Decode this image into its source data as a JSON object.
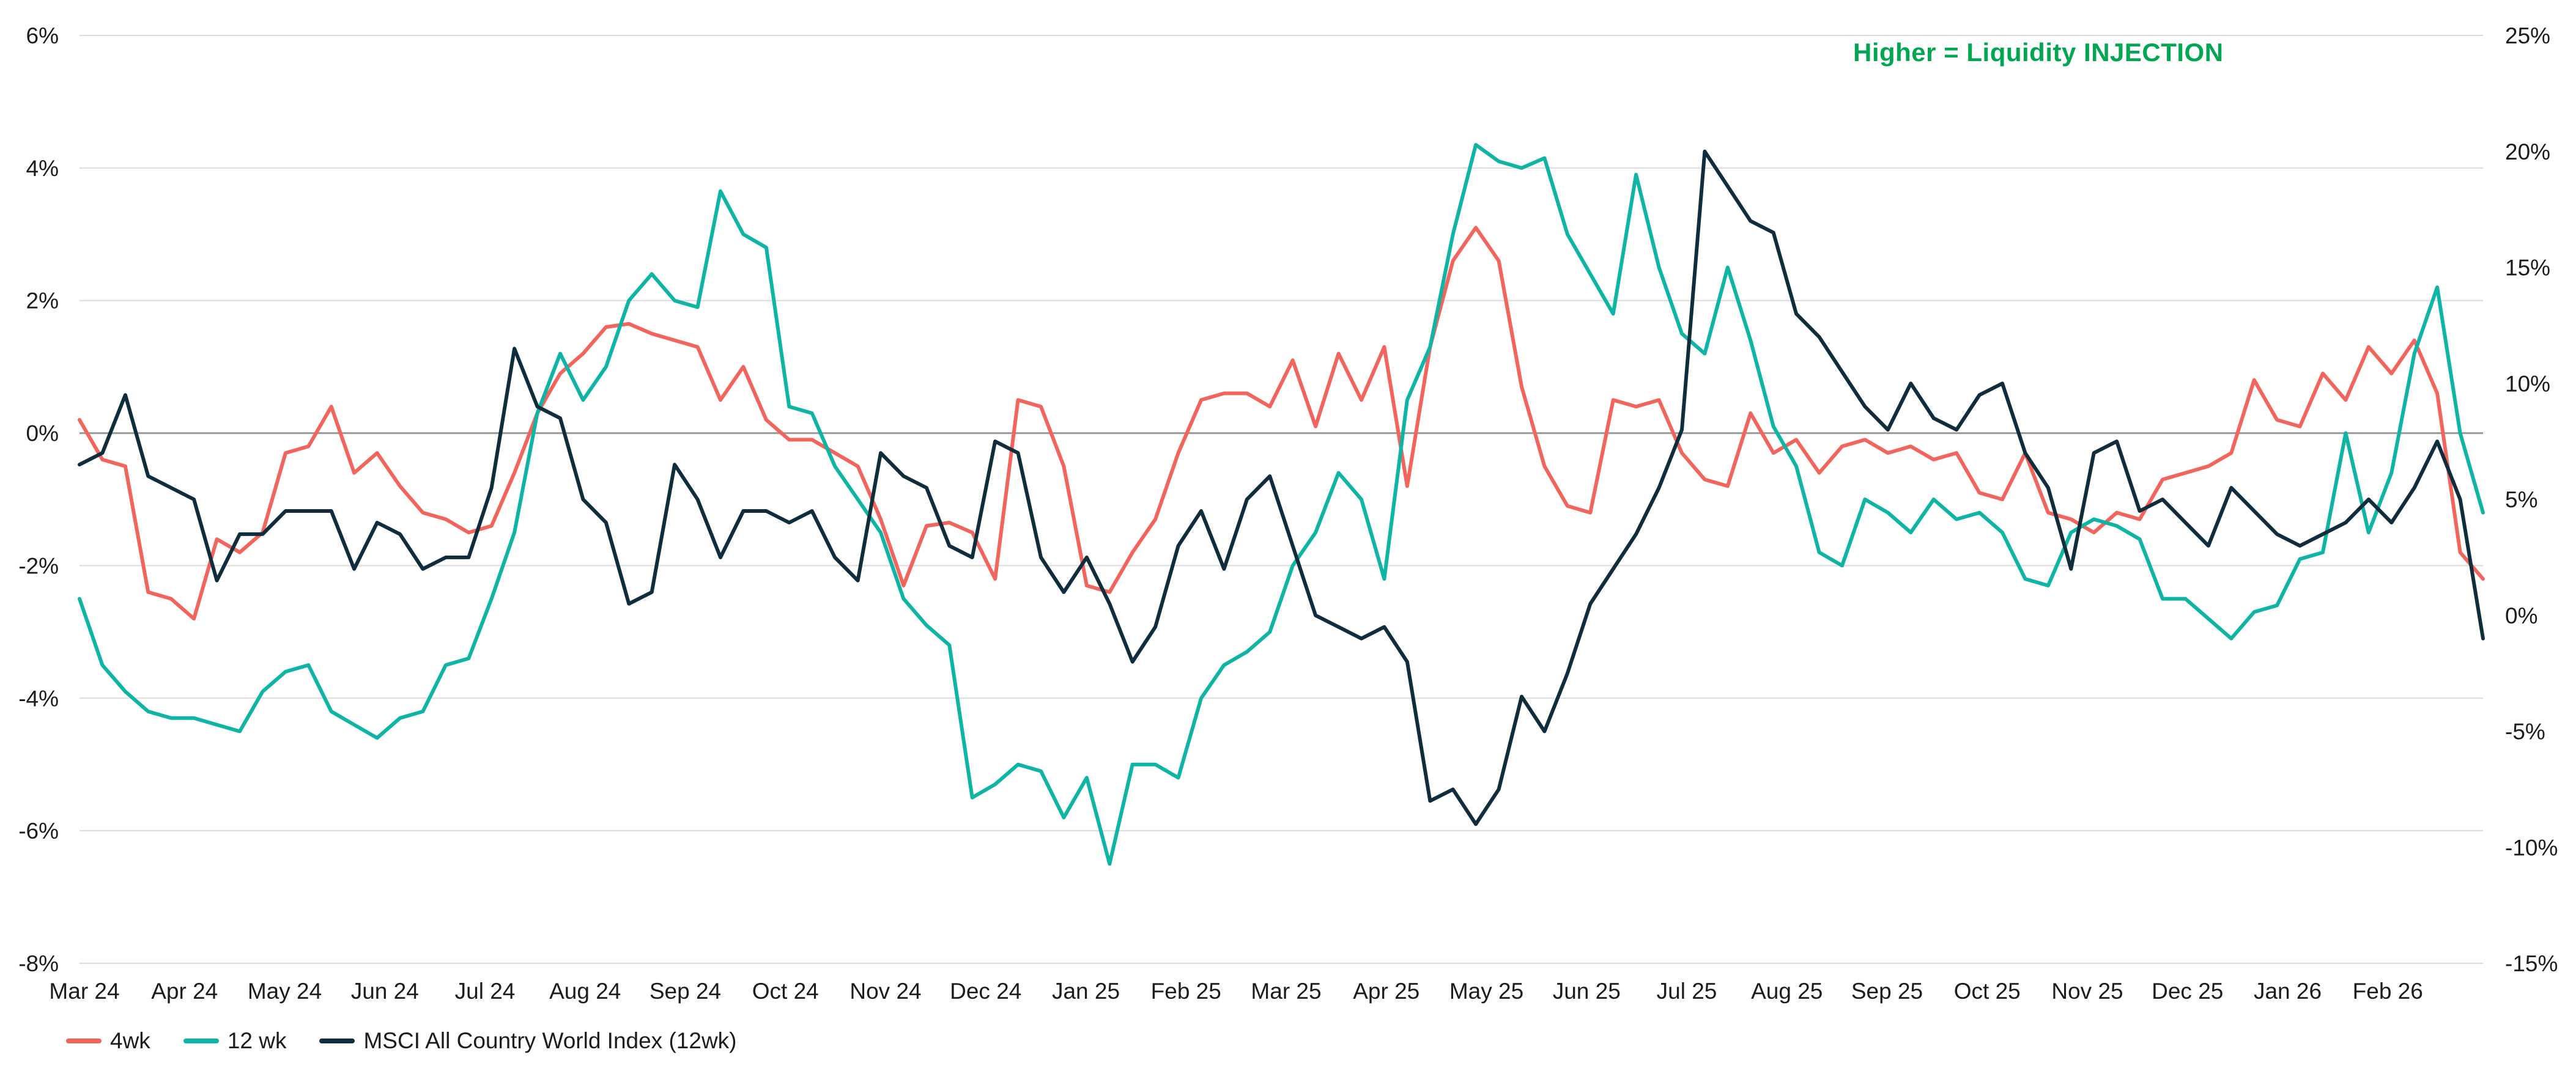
{
  "chart_data": {
    "type": "line",
    "title": "",
    "annotation": "Higher = Liquidity INJECTION",
    "annotation_color": "#00A651",
    "colors": {
      "grid_line": "#DBDBDB",
      "zero_line": "#9A9A9A",
      "text": "#1C1C1C",
      "background": "#FFFFFF"
    },
    "x_axis": {
      "labels": [
        "Mar 24",
        "Apr 24",
        "May 24",
        "Jun 24",
        "Jul 24",
        "Aug 24",
        "Sep 24",
        "Oct 24",
        "Nov 24",
        "Dec 24",
        "Jan 25",
        "Feb 25",
        "Mar 25",
        "Apr 25",
        "May 25",
        "Jun 25",
        "Jul 25",
        "Aug 25",
        "Sep 25",
        "Oct 25",
        "Nov 25",
        "Dec 25",
        "Jan 26",
        "Feb 26"
      ]
    },
    "left_axis": {
      "ticks": [
        "6%",
        "4%",
        "2%",
        "0%",
        "-2%",
        "-4%",
        "-6%",
        "-8%"
      ],
      "tick_values": [
        6,
        4,
        2,
        0,
        -2,
        -4,
        -6,
        -8
      ],
      "max": 6,
      "min": -8
    },
    "right_axis": {
      "ticks": [
        "25%",
        "20%",
        "15%",
        "10%",
        "5%",
        "0%",
        "-5%",
        "-10%",
        "-15%"
      ],
      "tick_values": [
        25,
        20,
        15,
        10,
        5,
        0,
        -5,
        -10,
        -15
      ],
      "max": 25,
      "min": -15
    },
    "series": [
      {
        "name": "4wk",
        "color": "#F2655C",
        "axis": "left",
        "values": [
          0.2,
          -0.4,
          -0.5,
          -2.4,
          -2.5,
          -2.8,
          -1.6,
          -1.8,
          -1.5,
          -0.3,
          -0.2,
          0.4,
          -0.6,
          -0.3,
          -0.8,
          -1.2,
          -1.3,
          -1.5,
          -1.4,
          -0.6,
          0.3,
          0.9,
          1.2,
          1.6,
          1.65,
          1.5,
          1.4,
          1.3,
          0.5,
          1.0,
          0.2,
          -0.1,
          -0.1,
          -0.3,
          -0.5,
          -1.3,
          -2.3,
          -1.4,
          -1.35,
          -1.5,
          -2.2,
          0.5,
          0.4,
          -0.5,
          -2.3,
          -2.4,
          -1.8,
          -1.3,
          -0.3,
          0.5,
          0.6,
          0.6,
          0.4,
          1.1,
          0.1,
          1.2,
          0.5,
          1.3,
          -0.8,
          1.3,
          2.6,
          3.1,
          2.6,
          0.7,
          -0.5,
          -1.1,
          -1.2,
          0.5,
          0.4,
          0.5,
          -0.3,
          -0.7,
          -0.8,
          0.3,
          -0.3,
          -0.1,
          -0.6,
          -0.2,
          -0.1,
          -0.3,
          -0.2,
          -0.4,
          -0.3,
          -0.9,
          -1.0,
          -0.3,
          -1.2,
          -1.3,
          -1.5,
          -1.2,
          -1.3,
          -0.7,
          -0.6,
          -0.5,
          -0.3,
          0.8,
          0.2,
          0.1,
          0.9,
          0.5,
          1.3,
          0.9,
          1.4,
          0.6,
          -1.8,
          -2.2
        ]
      },
      {
        "name": "12 wk",
        "color": "#0EB4A4",
        "axis": "left",
        "values": [
          -2.5,
          -3.5,
          -3.9,
          -4.2,
          -4.3,
          -4.3,
          -4.4,
          -4.5,
          -3.9,
          -3.6,
          -3.5,
          -4.2,
          -4.4,
          -4.6,
          -4.3,
          -4.2,
          -3.5,
          -3.4,
          -2.5,
          -1.5,
          0.3,
          1.2,
          0.5,
          1.0,
          2.0,
          2.4,
          2.0,
          1.9,
          3.65,
          3.0,
          2.8,
          0.4,
          0.3,
          -0.5,
          -1.0,
          -1.5,
          -2.5,
          -2.9,
          -3.2,
          -5.5,
          -5.3,
          -5.0,
          -5.1,
          -5.8,
          -5.2,
          -6.5,
          -5.0,
          -5.0,
          -5.2,
          -4.0,
          -3.5,
          -3.3,
          -3.0,
          -2.0,
          -1.5,
          -0.6,
          -1.0,
          -2.2,
          0.5,
          1.3,
          3.0,
          4.35,
          4.1,
          4.0,
          4.15,
          3.0,
          2.4,
          1.8,
          3.9,
          2.5,
          1.5,
          1.2,
          2.5,
          1.4,
          0.1,
          -0.5,
          -1.8,
          -2.0,
          -1.0,
          -1.2,
          -1.5,
          -1.0,
          -1.3,
          -1.2,
          -1.5,
          -2.2,
          -2.3,
          -1.5,
          -1.3,
          -1.4,
          -1.6,
          -2.5,
          -2.5,
          -2.8,
          -3.1,
          -2.7,
          -2.6,
          -1.9,
          -1.8,
          0.0,
          -1.5,
          -0.6,
          1.2,
          2.2,
          0.0,
          -1.2
        ]
      },
      {
        "name": "MSCI All Country World Index (12wk)",
        "color": "#0F2D3D",
        "axis": "right",
        "values": [
          6.5,
          7.0,
          9.5,
          6.0,
          5.5,
          5.0,
          1.5,
          3.5,
          3.5,
          4.5,
          4.5,
          4.5,
          2.0,
          4.0,
          3.5,
          2.0,
          2.5,
          2.5,
          5.5,
          11.5,
          9.0,
          8.5,
          5.0,
          4.0,
          0.5,
          1.0,
          6.5,
          5.0,
          2.5,
          4.5,
          4.5,
          4.0,
          4.5,
          2.5,
          1.5,
          7.0,
          6.0,
          5.5,
          3.0,
          2.5,
          7.5,
          7.0,
          2.5,
          1.0,
          2.5,
          0.5,
          -2.0,
          -0.5,
          3.0,
          4.5,
          2.0,
          5.0,
          6.0,
          3.0,
          0.0,
          -0.5,
          -1.0,
          -0.5,
          -2.0,
          -8.0,
          -7.5,
          -9.0,
          -7.5,
          -3.5,
          -5.0,
          -2.5,
          0.5,
          2.0,
          3.5,
          5.5,
          8.0,
          20.0,
          18.5,
          17.0,
          16.5,
          13.0,
          12.0,
          10.5,
          9.0,
          8.0,
          10.0,
          8.5,
          8.0,
          9.5,
          10.0,
          7.0,
          5.5,
          2.0,
          7.0,
          7.5,
          4.5,
          5.0,
          4.0,
          3.0,
          5.5,
          4.5,
          3.5,
          3.0,
          3.5,
          4.0,
          5.0,
          4.0,
          5.5,
          7.5,
          5.0,
          -1.0
        ]
      }
    ]
  }
}
